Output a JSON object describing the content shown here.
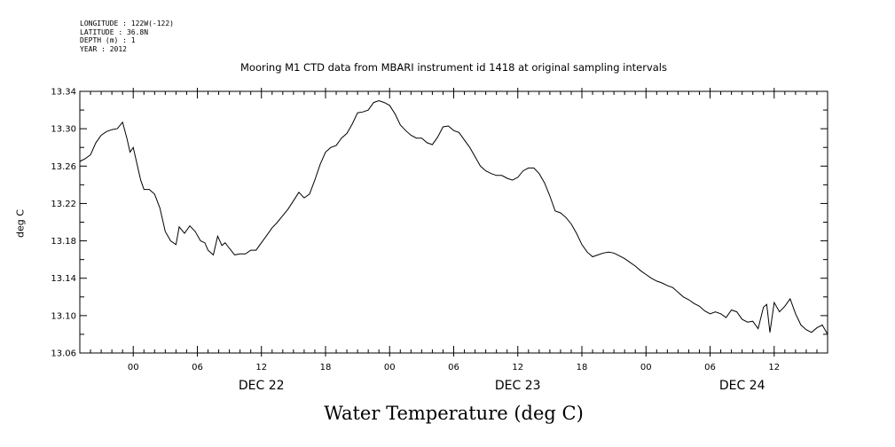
{
  "meta": {
    "longitude": "LONGITUDE : 122W(-122)",
    "latitude": "LATITUDE : 36.8N",
    "depth": "DEPTH (m) : 1",
    "year": "YEAR : 2012"
  },
  "chart_data": {
    "type": "line",
    "title": "Mooring M1 CTD data from MBARI instrument id 1418 at original sampling intervals",
    "xlabel": "Water Temperature (deg C)",
    "ylabel": "deg C",
    "ylim": [
      13.06,
      13.34
    ],
    "y_ticks": [
      "13.06",
      "13.10",
      "13.14",
      "13.18",
      "13.22",
      "13.26",
      "13.30",
      "13.34"
    ],
    "xlim_hours": [
      -5,
      65
    ],
    "x_tick_labels": [
      {
        "hour": 0,
        "label": "00"
      },
      {
        "hour": 6,
        "label": "06"
      },
      {
        "hour": 12,
        "label": "12"
      },
      {
        "hour": 18,
        "label": "18"
      },
      {
        "hour": 24,
        "label": "00"
      },
      {
        "hour": 30,
        "label": "06"
      },
      {
        "hour": 36,
        "label": "12"
      },
      {
        "hour": 42,
        "label": "18"
      },
      {
        "hour": 48,
        "label": "00"
      },
      {
        "hour": 54,
        "label": "06"
      },
      {
        "hour": 60,
        "label": "12"
      }
    ],
    "day_labels": [
      {
        "hour": 12,
        "label": "DEC 22"
      },
      {
        "hour": 36,
        "label": "DEC 23"
      },
      {
        "hour": 57,
        "label": "DEC 24"
      }
    ],
    "grid": false,
    "series": [
      {
        "color": "#000000",
        "x": [
          -5,
          -4.5,
          -4,
          -3.5,
          -3,
          -2.5,
          -2,
          -1.5,
          -1,
          -0.6,
          -0.3,
          0,
          0.3,
          0.7,
          1,
          1.5,
          2,
          2.5,
          3,
          3.5,
          4,
          4.3,
          4.8,
          5.3,
          5.8,
          6.3,
          6.7,
          7,
          7.5,
          7.9,
          8.3,
          8.6,
          9,
          9.5,
          10,
          10.5,
          11,
          11.5,
          12,
          12.5,
          13,
          13.5,
          14,
          14.5,
          15,
          15.5,
          16,
          16.5,
          17,
          17.5,
          18,
          18.5,
          19,
          19.5,
          20,
          20.5,
          21,
          21.5,
          22,
          22.5,
          23,
          23.5,
          24,
          24.5,
          25,
          25.5,
          26,
          26.5,
          27,
          27.5,
          28,
          28.5,
          29,
          29.5,
          30,
          30.5,
          31,
          31.5,
          32,
          32.5,
          33,
          33.5,
          34,
          34.5,
          35,
          35.5,
          36,
          36.5,
          37,
          37.5,
          38,
          38.5,
          39,
          39.5,
          40,
          40.5,
          41,
          41.5,
          42,
          42.5,
          43,
          43.5,
          44,
          44.5,
          45,
          45.5,
          46,
          46.5,
          47,
          47.5,
          48,
          48.5,
          49,
          49.5,
          50,
          50.5,
          51,
          51.5,
          52,
          52.5,
          53,
          53.5,
          54,
          54.5,
          55,
          55.5,
          56,
          56.5,
          57,
          57.5,
          58,
          58.5,
          59,
          59.3,
          59.6,
          60,
          60.5,
          61,
          61.5,
          62,
          62.5,
          63,
          63.5,
          64,
          64.5,
          65
        ],
        "y": [
          13.265,
          13.268,
          13.272,
          13.285,
          13.293,
          13.297,
          13.299,
          13.3,
          13.307,
          13.29,
          13.275,
          13.28,
          13.265,
          13.245,
          13.235,
          13.235,
          13.23,
          13.215,
          13.19,
          13.18,
          13.176,
          13.195,
          13.188,
          13.196,
          13.19,
          13.18,
          13.178,
          13.17,
          13.165,
          13.185,
          13.175,
          13.178,
          13.172,
          13.165,
          13.166,
          13.166,
          13.17,
          13.17,
          13.178,
          13.186,
          13.194,
          13.2,
          13.207,
          13.214,
          13.223,
          13.232,
          13.226,
          13.23,
          13.245,
          13.262,
          13.275,
          13.28,
          13.282,
          13.29,
          13.295,
          13.305,
          13.317,
          13.318,
          13.32,
          13.328,
          13.33,
          13.328,
          13.325,
          13.316,
          13.304,
          13.298,
          13.293,
          13.29,
          13.29,
          13.285,
          13.283,
          13.291,
          13.302,
          13.303,
          13.298,
          13.296,
          13.288,
          13.28,
          13.27,
          13.26,
          13.255,
          13.252,
          13.25,
          13.25,
          13.247,
          13.245,
          13.248,
          13.255,
          13.258,
          13.258,
          13.252,
          13.242,
          13.228,
          13.212,
          13.21,
          13.205,
          13.198,
          13.188,
          13.176,
          13.168,
          13.163,
          13.165,
          13.167,
          13.168,
          13.167,
          13.164,
          13.161,
          13.157,
          13.153,
          13.148,
          13.144,
          13.14,
          13.137,
          13.135,
          13.132,
          13.13,
          13.125,
          13.12,
          13.117,
          13.113,
          13.11,
          13.105,
          13.102,
          13.104,
          13.102,
          13.098,
          13.106,
          13.104,
          13.096,
          13.093,
          13.094,
          13.086,
          13.109,
          13.112,
          13.082,
          13.114,
          13.104,
          13.11,
          13.118,
          13.102,
          13.09,
          13.085,
          13.082,
          13.087,
          13.09,
          13.08
        ]
      }
    ]
  }
}
